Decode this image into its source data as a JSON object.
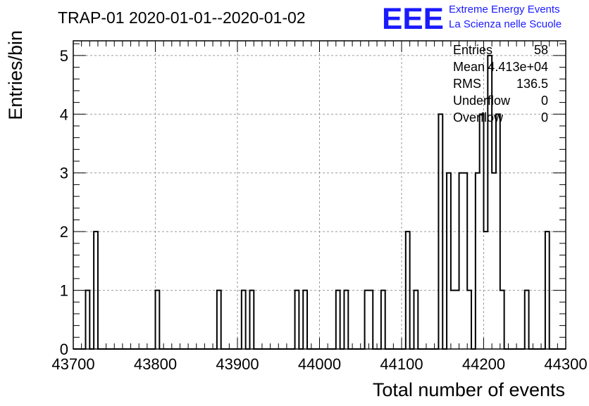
{
  "chart_data": {
    "type": "histogram",
    "title": "TRAP-01 2020-01-01--2020-01-02",
    "xlabel": "Total number of events",
    "ylabel": "Entries/bin",
    "xlim": [
      43700,
      44300
    ],
    "ylim": [
      0,
      5.25
    ],
    "x_ticks": [
      "43700",
      "43800",
      "43900",
      "44000",
      "44100",
      "44200",
      "44300"
    ],
    "y_ticks": [
      "0",
      "1",
      "2",
      "3",
      "4",
      "5"
    ],
    "grid": true,
    "bin_width": 5,
    "bins": [
      {
        "x0": 43715,
        "x1": 43720,
        "count": 1
      },
      {
        "x0": 43725,
        "x1": 43730,
        "count": 2
      },
      {
        "x0": 43800,
        "x1": 43805,
        "count": 1
      },
      {
        "x0": 43875,
        "x1": 43880,
        "count": 1
      },
      {
        "x0": 43905,
        "x1": 43910,
        "count": 1
      },
      {
        "x0": 43915,
        "x1": 43920,
        "count": 1
      },
      {
        "x0": 43970,
        "x1": 43975,
        "count": 1
      },
      {
        "x0": 43980,
        "x1": 43985,
        "count": 1
      },
      {
        "x0": 44020,
        "x1": 44025,
        "count": 1
      },
      {
        "x0": 44030,
        "x1": 44035,
        "count": 1
      },
      {
        "x0": 44055,
        "x1": 44060,
        "count": 1
      },
      {
        "x0": 44060,
        "x1": 44065,
        "count": 1
      },
      {
        "x0": 44075,
        "x1": 44080,
        "count": 1
      },
      {
        "x0": 44105,
        "x1": 44110,
        "count": 2
      },
      {
        "x0": 44115,
        "x1": 44120,
        "count": 1
      },
      {
        "x0": 44145,
        "x1": 44150,
        "count": 4
      },
      {
        "x0": 44155,
        "x1": 44160,
        "count": 3
      },
      {
        "x0": 44160,
        "x1": 44165,
        "count": 1
      },
      {
        "x0": 44165,
        "x1": 44170,
        "count": 1
      },
      {
        "x0": 44170,
        "x1": 44175,
        "count": 3
      },
      {
        "x0": 44175,
        "x1": 44180,
        "count": 3
      },
      {
        "x0": 44180,
        "x1": 44185,
        "count": 1
      },
      {
        "x0": 44190,
        "x1": 44195,
        "count": 3
      },
      {
        "x0": 44195,
        "x1": 44200,
        "count": 4
      },
      {
        "x0": 44200,
        "x1": 44205,
        "count": 2
      },
      {
        "x0": 44205,
        "x1": 44210,
        "count": 5
      },
      {
        "x0": 44210,
        "x1": 44215,
        "count": 3
      },
      {
        "x0": 44215,
        "x1": 44220,
        "count": 4
      },
      {
        "x0": 44220,
        "x1": 44225,
        "count": 1
      },
      {
        "x0": 44250,
        "x1": 44255,
        "count": 1
      },
      {
        "x0": 44275,
        "x1": 44280,
        "count": 2
      }
    ],
    "stats": [
      {
        "label": "Entries",
        "value": "58"
      },
      {
        "label": "Mean",
        "value": "4.413e+04"
      },
      {
        "label": "RMS",
        "value": "136.5"
      },
      {
        "label": "Underflow",
        "value": "0"
      },
      {
        "label": "Overflow",
        "value": "0"
      }
    ],
    "logo": {
      "mark": "EEE",
      "line1": "Extreme Energy Events",
      "line2": "La Scienza nelle Scuole",
      "color": "#1a1aff"
    },
    "line_color": "#000000",
    "grid_color": "#9a9a9a"
  }
}
